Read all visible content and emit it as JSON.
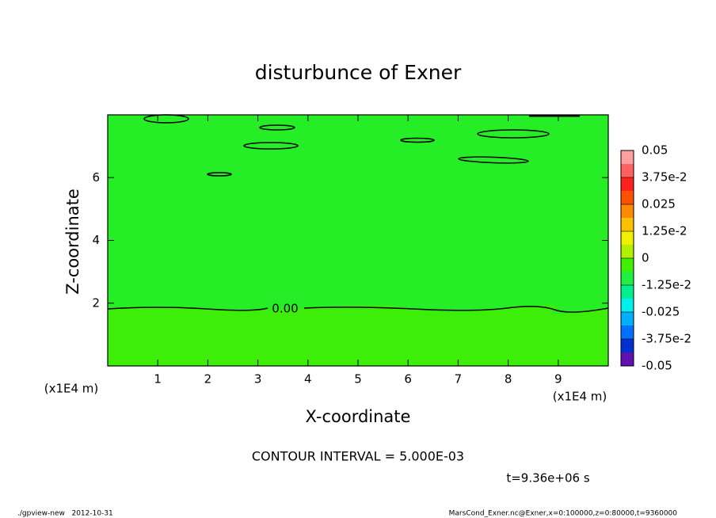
{
  "chart_data": {
    "type": "contour",
    "title": "disturbunce of Exner",
    "xlabel": "X-coordinate",
    "ylabel": "Z-coordinate",
    "x_unit_labels": [
      "(x1E4 m)",
      "(x1E4 m)"
    ],
    "xlim": [
      0,
      10
    ],
    "ylim": [
      0,
      8
    ],
    "xticks": [
      1,
      2,
      3,
      4,
      5,
      6,
      7,
      8,
      9
    ],
    "yticks": [
      2,
      4,
      6
    ],
    "contour_label": "0.00",
    "contour_interval": "CONTOUR INTERVAL = 5.000E-03",
    "time_label": "t=9.36e+06 s",
    "footer_left": "./gpview-new   2012-10-31",
    "footer_right": "MarsCond_Exner.nc@Exner,x=0:100000,z=0:80000,t=9360000",
    "colorbar": {
      "lim": [
        -0.05,
        0.05
      ],
      "ticks": [
        0.05,
        {
          "value": 0.0375,
          "label": "3.75e-2"
        },
        0.025,
        {
          "value": 0.0125,
          "label": "1.25e-2"
        },
        0,
        {
          "value": -0.0125,
          "label": "-1.25e-2"
        },
        -0.025,
        {
          "value": -0.0375,
          "label": "-3.75e-2"
        },
        -0.05
      ],
      "colors": [
        "#ff9f9f",
        "#ff6060",
        "#ff2020",
        "#ff5000",
        "#ff8c00",
        "#ffc000",
        "#f0f000",
        "#b0f000",
        "#40f000",
        "#20f040",
        "#00f090",
        "#00f0f0",
        "#00b0ff",
        "#0070ff",
        "#0030d0",
        "#6010b0"
      ]
    }
  }
}
